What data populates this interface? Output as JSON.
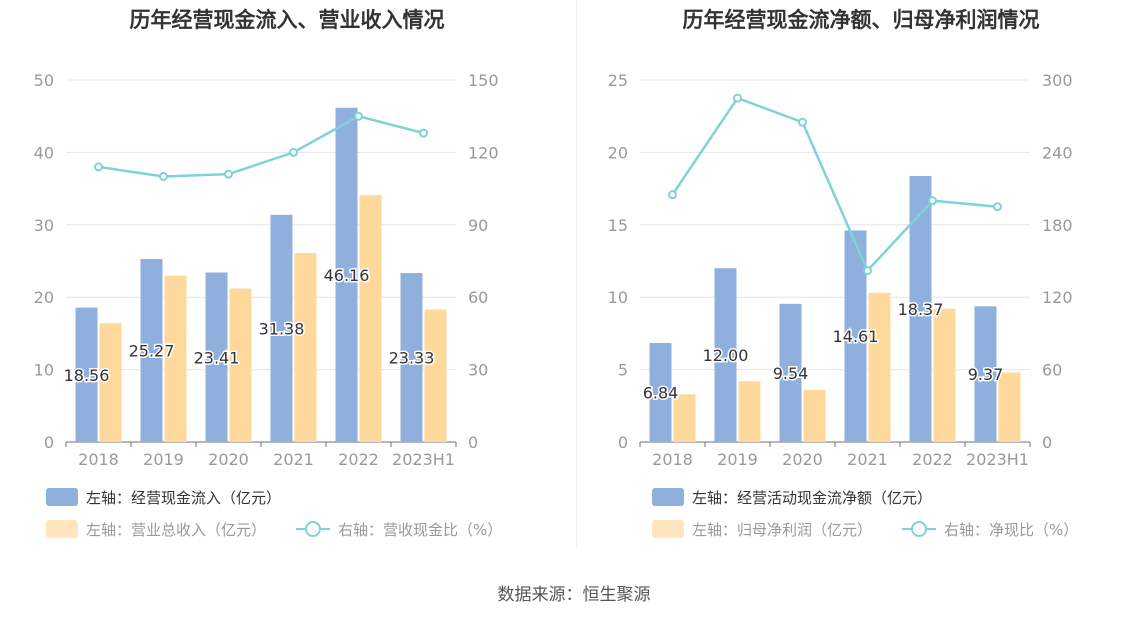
{
  "colors": {
    "bar_primary": "#8fafdc",
    "bar_secondary": "#ffd99b",
    "line": "#7fd3d8",
    "axis_text": "#999999",
    "grid": "#e6e6ea"
  },
  "footer": {
    "source": "数据来源：恒生聚源"
  },
  "chart_data": [
    {
      "type": "bar",
      "title": "历年经营现金流入、营业收入情况",
      "categories": [
        "2018",
        "2019",
        "2020",
        "2021",
        "2022",
        "2023H1"
      ],
      "left_axis": {
        "ylim": [
          0,
          50
        ],
        "ticks": [
          "0",
          "10",
          "20",
          "30",
          "40",
          "50"
        ]
      },
      "right_axis": {
        "ylim": [
          0,
          150
        ],
        "ticks": [
          "0",
          "30",
          "60",
          "90",
          "120",
          "150"
        ]
      },
      "series": [
        {
          "name": "左轴：经营现金流入（亿元）",
          "kind": "bar",
          "axis": "left",
          "values": [
            18.56,
            25.27,
            23.41,
            31.38,
            46.16,
            23.33
          ],
          "labels": [
            "18.56",
            "25.27",
            "23.41",
            "31.38",
            "46.16",
            "23.33"
          ]
        },
        {
          "name": "左轴：营业总收入（亿元）",
          "kind": "bar",
          "axis": "left",
          "values": [
            16.4,
            23.0,
            21.2,
            26.1,
            34.1,
            18.3
          ]
        },
        {
          "name": "右轴：营收现金比（%）",
          "kind": "line",
          "axis": "right",
          "values": [
            114,
            110,
            111,
            120,
            135,
            128
          ]
        }
      ]
    },
    {
      "type": "bar",
      "title": "历年经营现金流净额、归母净利润情况",
      "categories": [
        "2018",
        "2019",
        "2020",
        "2021",
        "2022",
        "2023H1"
      ],
      "left_axis": {
        "ylim": [
          0,
          25
        ],
        "ticks": [
          "0",
          "5",
          "10",
          "15",
          "20",
          "25"
        ]
      },
      "right_axis": {
        "ylim": [
          0,
          300
        ],
        "ticks": [
          "0",
          "60",
          "120",
          "180",
          "240",
          "300"
        ]
      },
      "series": [
        {
          "name": "左轴：经营活动现金流净额（亿元）",
          "kind": "bar",
          "axis": "left",
          "values": [
            6.84,
            12.0,
            9.54,
            14.61,
            18.37,
            9.37
          ],
          "labels": [
            "6.84",
            "12.00",
            "9.54",
            "14.61",
            "18.37",
            "9.37"
          ]
        },
        {
          "name": "左轴：归母净利润（亿元）",
          "kind": "bar",
          "axis": "left",
          "values": [
            3.3,
            4.2,
            3.6,
            10.3,
            9.2,
            4.8
          ]
        },
        {
          "name": "右轴：净现比（%）",
          "kind": "line",
          "axis": "right",
          "values": [
            205,
            285,
            265,
            142,
            200,
            195
          ]
        }
      ]
    }
  ]
}
